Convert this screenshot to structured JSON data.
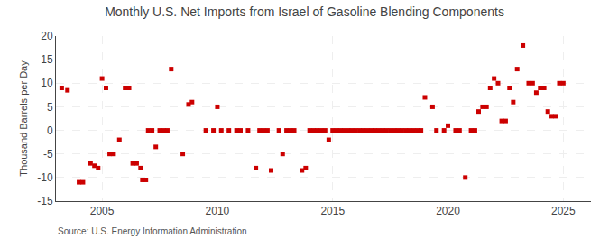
{
  "chart_data": {
    "type": "scatter",
    "title": "Monthly U.S. Net Imports from Israel of Gasoline Blending Components",
    "y_label": "Thousand Barrels per Day",
    "annotations": [
      "Source: U.S. Energy Information Administration"
    ],
    "color": "#CC0000",
    "marker": "square",
    "grid": true,
    "xlim": [
      2003.0,
      2026.2
    ],
    "xticks": [
      2005,
      2010,
      2015,
      2020,
      2025
    ],
    "ylim": [
      -15,
      20
    ],
    "yticks": [
      -15,
      -10,
      -5,
      0,
      5,
      10,
      15,
      20
    ],
    "x": [
      2003.25,
      2003.5,
      2004.0,
      2004.17,
      2004.5,
      2004.67,
      2004.83,
      2005.0,
      2005.17,
      2005.33,
      2005.5,
      2005.75,
      2006.0,
      2006.17,
      2006.33,
      2006.5,
      2006.67,
      2006.75,
      2006.9,
      2007.0,
      2007.17,
      2007.33,
      2007.5,
      2007.67,
      2007.83,
      2008.0,
      2008.5,
      2008.75,
      2008.9,
      2009.5,
      2009.83,
      2010.0,
      2010.17,
      2010.5,
      2010.83,
      2011.0,
      2011.33,
      2011.67,
      2011.83,
      2012.0,
      2012.17,
      2012.33,
      2012.67,
      2012.83,
      2013.0,
      2013.17,
      2013.33,
      2013.67,
      2013.83,
      2014.0,
      2014.17,
      2014.33,
      2014.5,
      2014.67,
      2014.83,
      2015.0,
      2015.17,
      2015.33,
      2015.5,
      2015.67,
      2015.83,
      2016.0,
      2016.17,
      2016.33,
      2016.5,
      2016.67,
      2016.83,
      2017.0,
      2017.17,
      2017.33,
      2017.5,
      2017.67,
      2017.83,
      2018.0,
      2018.17,
      2018.33,
      2018.5,
      2018.67,
      2018.83,
      2019.0,
      2019.33,
      2019.5,
      2019.83,
      2020.0,
      2020.33,
      2020.5,
      2020.75,
      2021.0,
      2021.17,
      2021.33,
      2021.5,
      2021.67,
      2021.83,
      2022.0,
      2022.17,
      2022.33,
      2022.5,
      2022.67,
      2022.83,
      2023.0,
      2023.25,
      2023.5,
      2023.67,
      2023.83,
      2024.0,
      2024.17,
      2024.33,
      2024.5,
      2024.67,
      2024.83,
      2025.0
    ],
    "values": [
      9,
      8.5,
      -11,
      -11,
      -7,
      -7.5,
      -8,
      11,
      9,
      -5,
      -5,
      -2,
      9,
      9,
      -7,
      -7,
      -8,
      -10.5,
      -10.5,
      0,
      0,
      -3.5,
      0,
      0,
      0,
      13,
      -5,
      5.5,
      6,
      0,
      0,
      5,
      0,
      0,
      0,
      0,
      0,
      -8,
      0,
      0,
      0,
      -8.5,
      0,
      -5,
      0,
      0,
      0,
      -8.5,
      -8,
      0,
      0,
      0,
      0,
      0,
      -2,
      0,
      0,
      0,
      0,
      0,
      0,
      0,
      0,
      0,
      0,
      0,
      0,
      0,
      0,
      0,
      0,
      0,
      0,
      0,
      0,
      0,
      0,
      0,
      0,
      7,
      5,
      0,
      0,
      1,
      0,
      0,
      -10,
      0,
      0,
      4,
      5,
      5,
      9,
      11,
      10,
      2,
      2,
      9,
      6,
      13,
      18,
      10,
      10,
      8,
      9,
      9,
      4,
      3,
      3,
      10,
      10
    ]
  }
}
